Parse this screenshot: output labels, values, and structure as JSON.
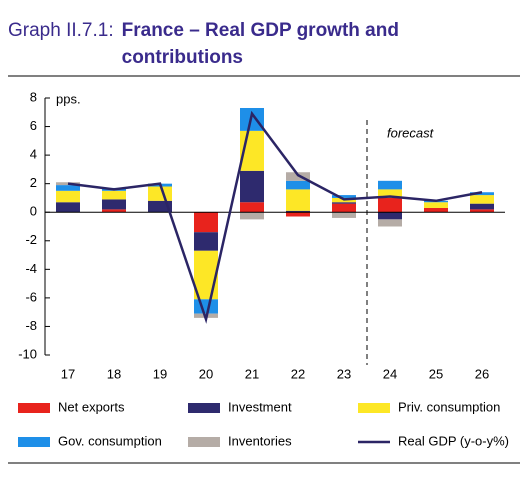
{
  "chart_data": {
    "type": "stacked_bar_line",
    "label": "Graph II.7.1:",
    "title": "France – Real GDP growth and contributions",
    "categories": [
      "17",
      "18",
      "19",
      "20",
      "21",
      "22",
      "23",
      "24",
      "25",
      "26"
    ],
    "series": [
      {
        "name": "Net exports",
        "color": "#e8231d",
        "values": [
          0,
          0.2,
          0,
          -1.4,
          0.7,
          -0.3,
          0.6,
          1.0,
          0.3,
          0.2
        ]
      },
      {
        "name": "Investment",
        "color": "#2e2a6e",
        "values": [
          0.7,
          0.7,
          0.8,
          -1.3,
          2.2,
          0.1,
          0.1,
          -0.5,
          0,
          0.4
        ]
      },
      {
        "name": "Priv. consumption",
        "color": "#fde726",
        "values": [
          0.8,
          0.6,
          1.0,
          -3.4,
          2.8,
          1.5,
          0.3,
          0.6,
          0.4,
          0.6
        ]
      },
      {
        "name": "Gov. consumption",
        "color": "#1e8fe8",
        "values": [
          0.4,
          0.2,
          0.2,
          -1.0,
          1.6,
          0.6,
          0.2,
          0.6,
          0.1,
          0.2
        ]
      },
      {
        "name": "Inventories",
        "color": "#b5aca6",
        "values": [
          0.2,
          0,
          0,
          -0.3,
          -0.5,
          0.6,
          -0.4,
          -0.5,
          0,
          0
        ]
      }
    ],
    "line": {
      "name": "Real GDP (y-o-y%)",
      "color": "#2b2565",
      "values": [
        2.0,
        1.6,
        2.0,
        -7.5,
        6.9,
        2.6,
        0.9,
        1.1,
        0.8,
        1.4
      ]
    },
    "ylim": [
      -10,
      8
    ],
    "yticks": [
      -10,
      -8,
      -6,
      -4,
      -2,
      0,
      2,
      4,
      6,
      8
    ],
    "y_unit": "pps.",
    "annotation": "forecast"
  }
}
